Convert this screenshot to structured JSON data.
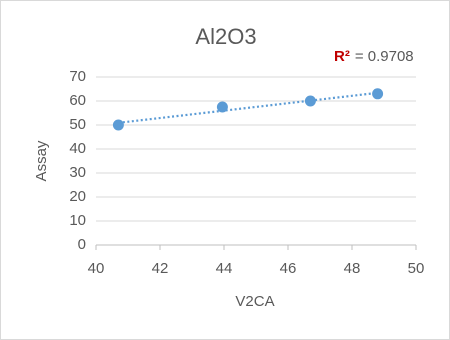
{
  "chart_data": {
    "type": "scatter",
    "title": "Al2O3",
    "x_label": "V2CA",
    "y_label": "Assay",
    "series": [
      {
        "color": "#5b9bd5",
        "x": [
          40.7,
          43.95,
          46.7,
          48.8
        ],
        "values": [
          50,
          57.5,
          60,
          63
        ]
      }
    ],
    "trendline": {
      "color": "#5b9bd5",
      "x": [
        40.7,
        48.8
      ],
      "values": [
        50.9,
        63.4
      ]
    },
    "annotation_label": "R²",
    "annotation_label_color": "#c00000",
    "annotation_text": "= 0.9708",
    "xlim": [
      40,
      50
    ],
    "xticks": [
      40,
      42,
      44,
      46,
      48,
      50
    ],
    "ylim": [
      0,
      70
    ],
    "yticks": [
      0,
      10,
      20,
      30,
      40,
      50,
      60,
      70
    ],
    "grid": true
  }
}
